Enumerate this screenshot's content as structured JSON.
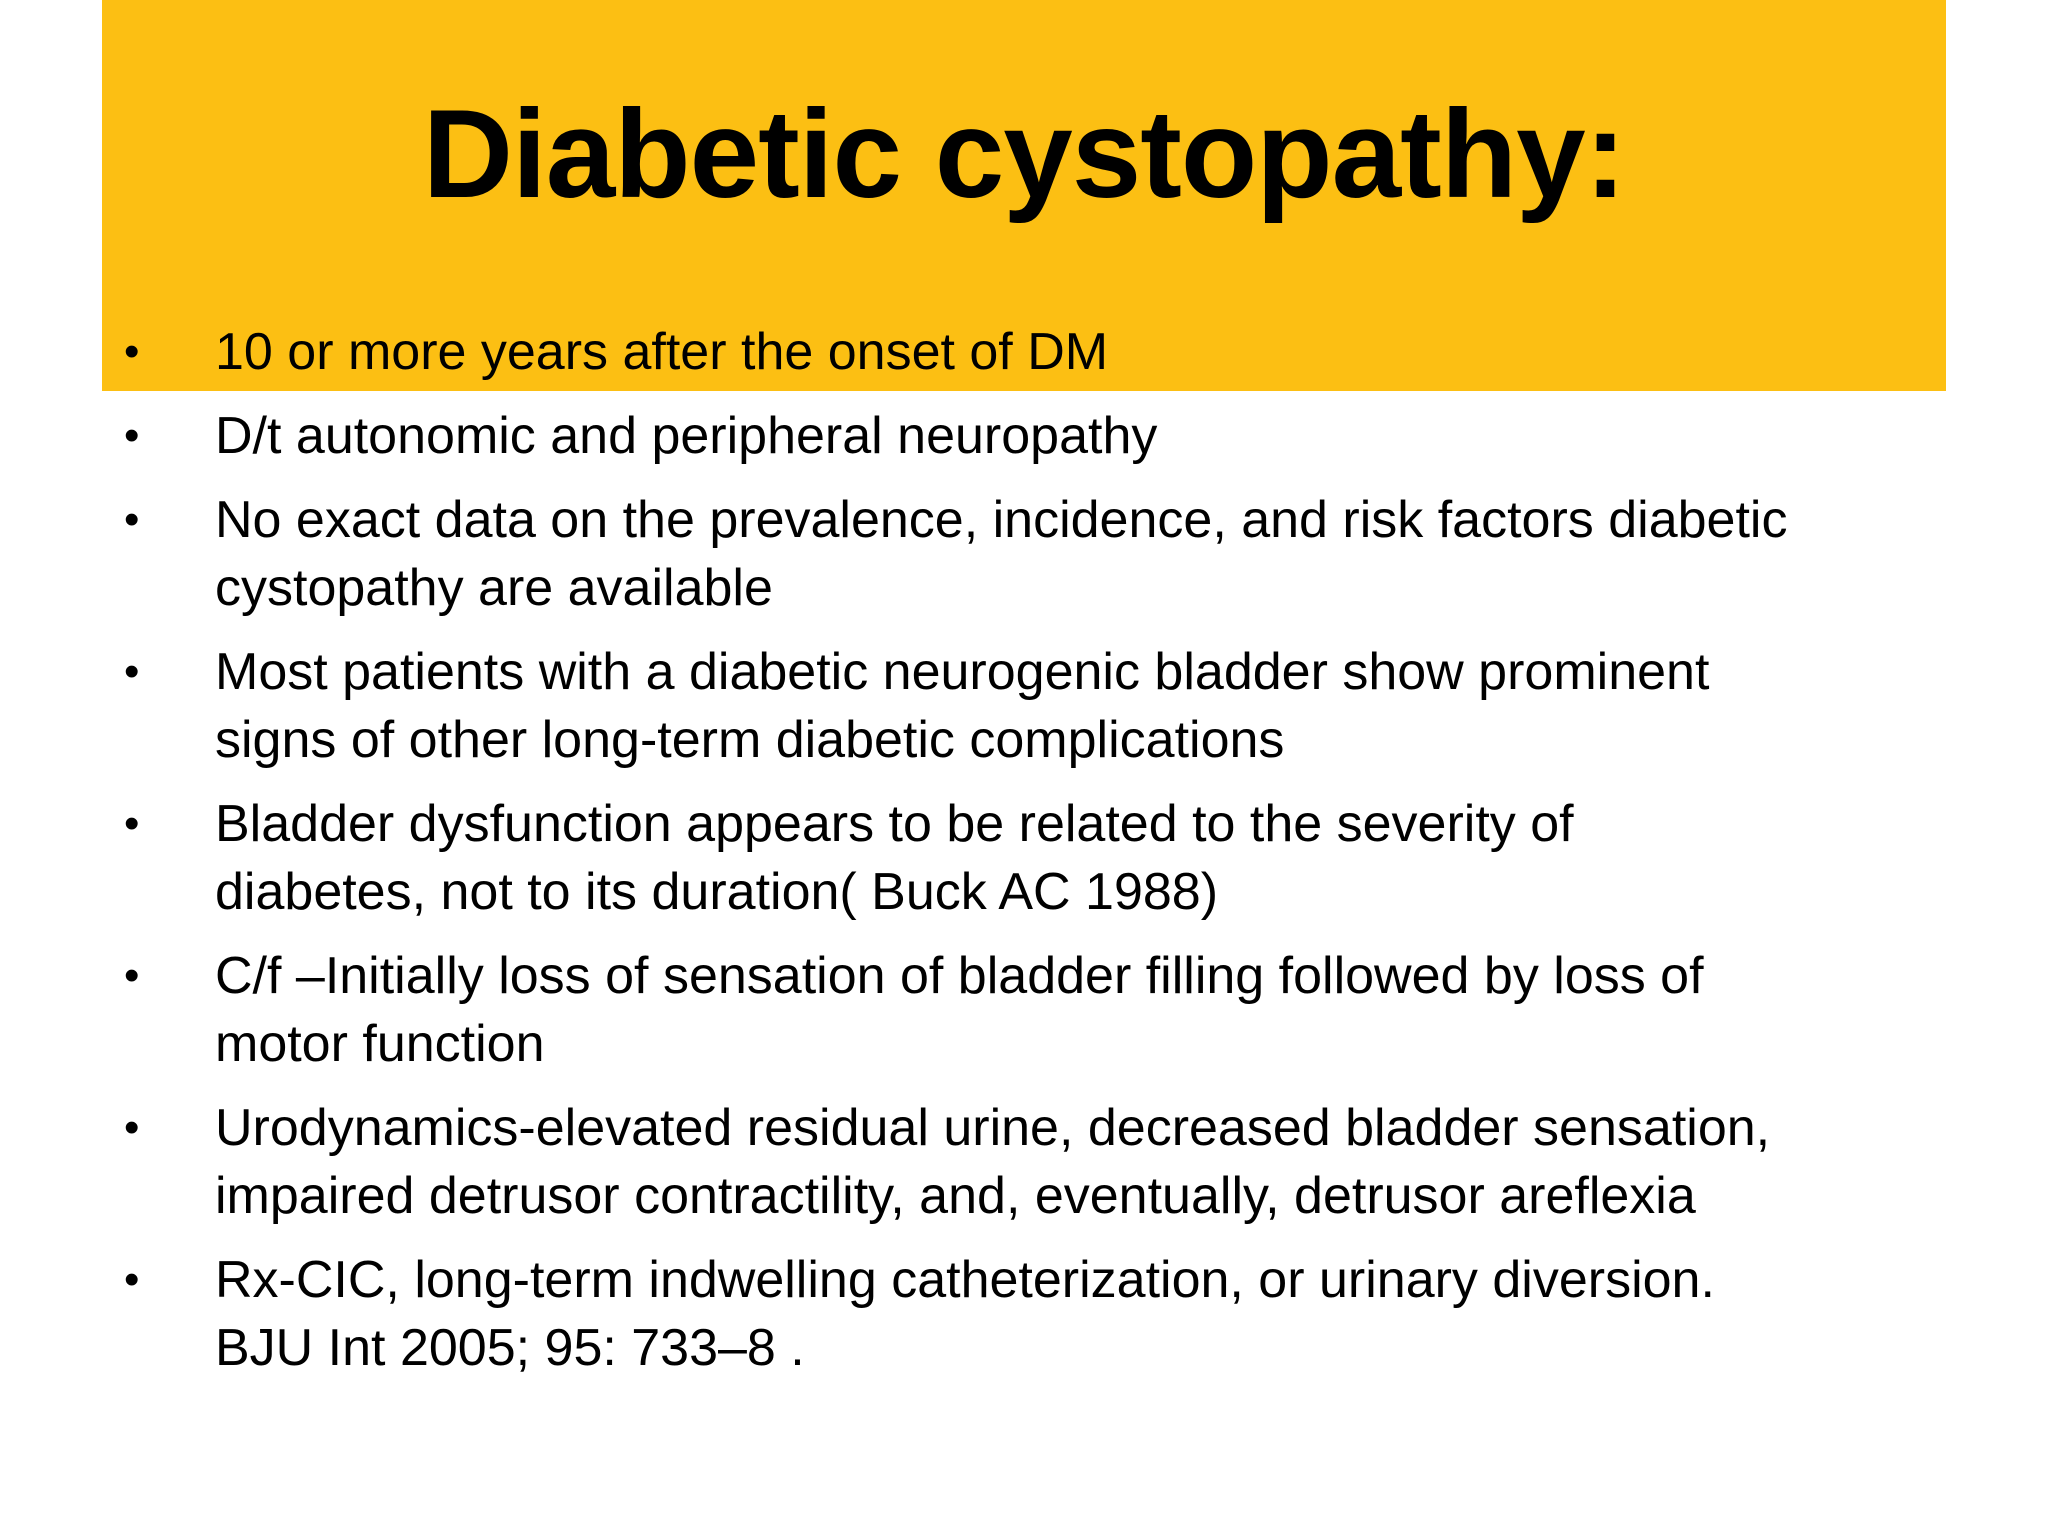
{
  "slide": {
    "title": "Diabetic cystopathy:",
    "bullet_glyph": "•",
    "colors": {
      "band": "#FCBF13",
      "background": "#FFFFFF",
      "text": "#000000"
    },
    "bullets": [
      {
        "lines": [
          "10 or more years after the onset of DM"
        ]
      },
      {
        "lines": [
          "D/t autonomic and peripheral neuropathy"
        ]
      },
      {
        "lines": [
          "No exact data on the prevalence, incidence, and risk factors diabetic",
          "cystopathy are available"
        ]
      },
      {
        "lines": [
          "Most patients with a diabetic neurogenic bladder show prominent",
          "signs of other long-term diabetic complications"
        ]
      },
      {
        "lines": [
          "Bladder dysfunction appears to be related to the severity of",
          "diabetes, not to its duration( Buck AC 1988)"
        ]
      },
      {
        "lines": [
          "C/f –Initially loss of sensation of bladder filling followed by loss of",
          "motor function"
        ]
      },
      {
        "lines": [
          "Urodynamics-elevated residual urine, decreased bladder sensation,",
          "impaired detrusor contractility, and, eventually, detrusor areflexia"
        ]
      },
      {
        "lines": [
          "Rx-CIC, long-term indwelling catheterization, or urinary diversion.",
          "BJU Int 2005; 95: 733–8 ."
        ]
      }
    ]
  }
}
